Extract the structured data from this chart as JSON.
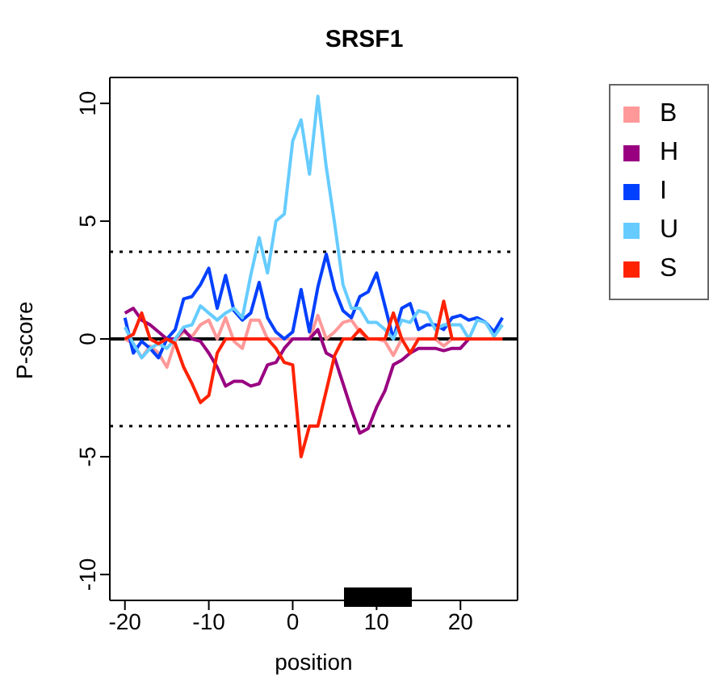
{
  "chart_data": {
    "type": "line",
    "title": "SRSF1",
    "xlabel": "position",
    "ylabel": "P-score",
    "x": [
      -20,
      -19,
      -18,
      -17,
      -16,
      -15,
      -14,
      -13,
      -12,
      -11,
      -10,
      -9,
      -8,
      -7,
      -6,
      -5,
      -4,
      -3,
      -2,
      -1,
      0,
      1,
      2,
      3,
      4,
      5,
      6,
      7,
      8,
      9,
      10,
      11,
      12,
      13,
      14,
      15,
      16,
      17,
      18,
      19,
      20,
      21,
      22,
      23,
      24,
      25
    ],
    "series": [
      {
        "name": "B",
        "color": "#ff9999",
        "values": [
          0,
          -0.2,
          -0.8,
          -0.3,
          -0.6,
          -1.2,
          -0.1,
          0.3,
          0.1,
          0.6,
          0.8,
          0,
          0.9,
          -0.1,
          -0.4,
          0.8,
          0.8,
          0,
          0,
          0,
          0,
          0,
          0,
          1.0,
          0,
          0.3,
          0.7,
          0.8,
          0.3,
          0,
          0,
          -0.1,
          -0.7,
          0,
          0,
          0,
          0,
          0,
          -0.3,
          0,
          0,
          0,
          0,
          0,
          0,
          0
        ]
      },
      {
        "name": "H",
        "color": "#990080",
        "values": [
          1.1,
          1.3,
          0.8,
          0.6,
          0.3,
          0,
          0,
          0.4,
          0,
          -0.1,
          -0.6,
          -1.2,
          -2.0,
          -1.8,
          -1.8,
          -2.0,
          -1.9,
          -1.1,
          -1.0,
          -0.4,
          0,
          0,
          0,
          0.4,
          -0.6,
          -0.8,
          -1.9,
          -3.0,
          -4.0,
          -3.8,
          -2.9,
          -2.2,
          -1.1,
          -0.9,
          -0.6,
          -0.4,
          -0.4,
          -0.4,
          -0.5,
          -0.4,
          -0.4,
          0,
          0,
          0,
          null,
          null
        ]
      },
      {
        "name": "I",
        "color": "#0040ff",
        "values": [
          0.9,
          -0.6,
          -0.1,
          -0.4,
          -0.8,
          0,
          0.4,
          1.7,
          1.8,
          2.3,
          3.0,
          1.3,
          2.7,
          1.2,
          0.8,
          1.1,
          2.4,
          0.9,
          0.3,
          0,
          0.3,
          2.1,
          0.3,
          2.2,
          3.6,
          2.1,
          1.2,
          0.9,
          1.8,
          2.0,
          2.8,
          1.4,
          0,
          1.3,
          1.5,
          0.4,
          0.6,
          0.6,
          0.4,
          0.9,
          1.0,
          0.8,
          0.9,
          0.7,
          0.3,
          0.9
        ]
      },
      {
        "name": "U",
        "color": "#66ccff",
        "values": [
          0.5,
          -0.2,
          -0.8,
          -0.4,
          -0.2,
          -0.4,
          0,
          0.5,
          0.6,
          1.4,
          1.1,
          0.8,
          1.1,
          1.3,
          0.9,
          2.7,
          4.3,
          2.8,
          5.0,
          5.3,
          8.4,
          9.3,
          7.0,
          10.3,
          7.3,
          4.9,
          2.3,
          1.3,
          1.3,
          0.7,
          0.7,
          0.4,
          0,
          0.8,
          0.7,
          1.2,
          1.1,
          0.4,
          0.6,
          0.6,
          0.6,
          0,
          0.8,
          0.7,
          0.1,
          0.6
        ]
      },
      {
        "name": "S",
        "color": "#ff2200",
        "values": [
          0,
          0.2,
          1.1,
          0,
          -0.2,
          0,
          -0.2,
          -1.2,
          -1.9,
          -2.7,
          -2.4,
          -0.6,
          0,
          0,
          0,
          0,
          0,
          0,
          -0.4,
          -1.0,
          -1.1,
          -5.0,
          -3.7,
          -3.7,
          -2.2,
          -0.7,
          0,
          0,
          0.4,
          0,
          0,
          0,
          1.1,
          0,
          -0.6,
          0,
          0,
          0,
          1.6,
          0,
          0,
          0,
          0,
          0,
          0,
          0
        ]
      }
    ],
    "xlim": [
      -21.8,
      26.8
    ],
    "xticks": [
      -20,
      -10,
      0,
      10,
      20
    ],
    "ylim": [
      -11.1,
      11.1
    ],
    "yticks": [
      -10,
      -5,
      0,
      5,
      10
    ],
    "ref_lines": [
      {
        "axis": "y",
        "value": 0,
        "color": "#000000",
        "line_style": "solid"
      },
      {
        "axis": "y",
        "value": 3.7,
        "color": "#000000",
        "line_style": "dotted"
      },
      {
        "axis": "y",
        "value": -3.7,
        "color": "#000000",
        "line_style": "dotted"
      }
    ],
    "grid": false,
    "legend": "top right",
    "marker": "none",
    "line_style": "solid"
  }
}
